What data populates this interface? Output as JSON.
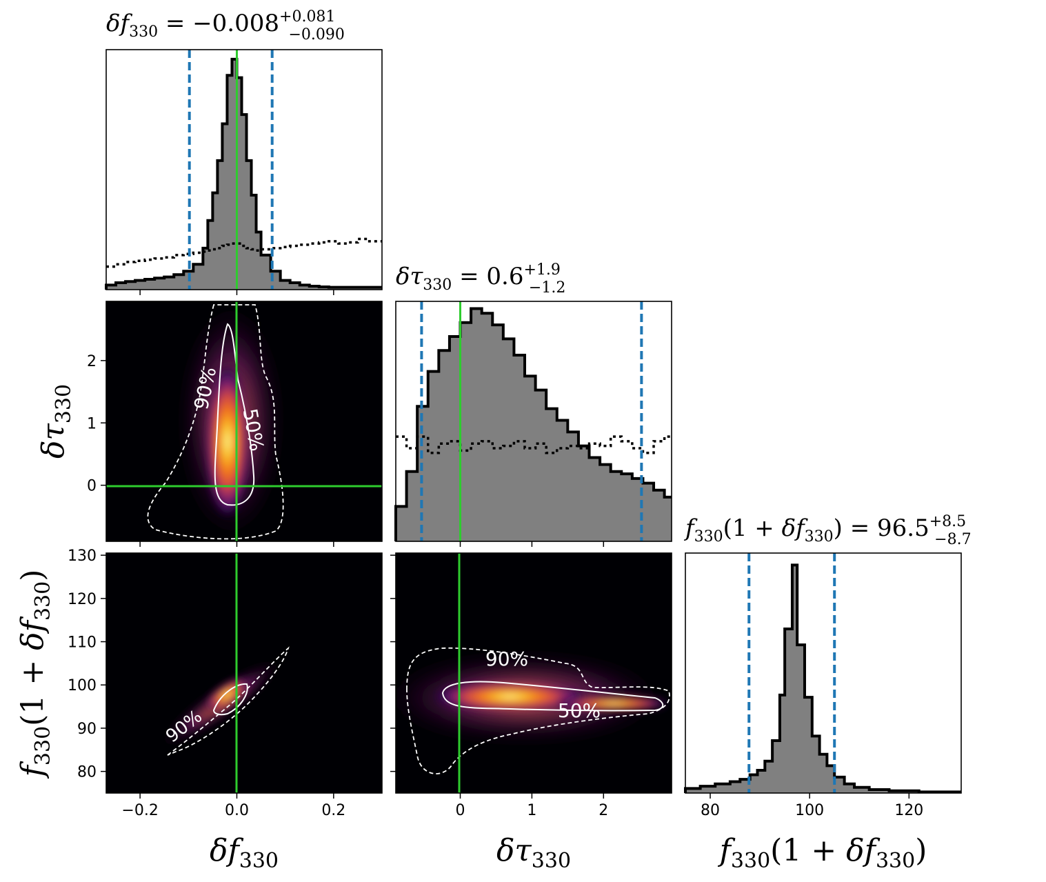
{
  "chart_data": [
    {
      "type": "histogram",
      "panel": "marginal-df",
      "title": "δf₃₃₀ = −0.008 +0.081 −0.090",
      "xlim": [
        -0.27,
        0.3
      ],
      "x_ticks": [
        -0.2,
        0.0,
        0.2
      ],
      "x_tick_labels": [
        "−0.2",
        "0.0",
        "0.2"
      ],
      "truth": 0.0,
      "credible_interval": [
        -0.098,
        0.073
      ],
      "posterior_bins": [
        -0.27,
        -0.25,
        -0.23,
        -0.21,
        -0.19,
        -0.17,
        -0.15,
        -0.13,
        -0.11,
        -0.09,
        -0.07,
        -0.06,
        -0.05,
        -0.04,
        -0.03,
        -0.02,
        -0.01,
        0.0,
        0.01,
        0.02,
        0.03,
        0.04,
        0.05,
        0.07,
        0.09,
        0.11,
        0.13,
        0.15,
        0.17,
        0.19,
        0.21,
        0.23,
        0.25,
        0.27,
        0.3
      ],
      "posterior_density": [
        0.02,
        0.03,
        0.035,
        0.04,
        0.045,
        0.05,
        0.055,
        0.065,
        0.08,
        0.11,
        0.18,
        0.3,
        0.42,
        0.56,
        0.72,
        0.93,
        1.0,
        0.92,
        0.76,
        0.56,
        0.41,
        0.25,
        0.15,
        0.08,
        0.04,
        0.03,
        0.02,
        0.015,
        0.012,
        0.01,
        0.01,
        0.01,
        0.01,
        0.01
      ],
      "prior_density": [
        0.1,
        0.11,
        0.12,
        0.125,
        0.13,
        0.135,
        0.14,
        0.15,
        0.155,
        0.16,
        0.165,
        0.17,
        0.175,
        0.18,
        0.19,
        0.195,
        0.2,
        0.2,
        0.19,
        0.18,
        0.175,
        0.17,
        0.175,
        0.18,
        0.185,
        0.19,
        0.195,
        0.2,
        0.205,
        0.21,
        0.2,
        0.205,
        0.22,
        0.21
      ]
    },
    {
      "type": "histogram",
      "panel": "marginal-dtau",
      "title": "δτ₃₃₀ = 0.6 +1.9 −1.2",
      "xlim": [
        -0.9,
        2.95
      ],
      "x_ticks": [
        0,
        1,
        2
      ],
      "truth": 0.0,
      "credible_interval": [
        -0.54,
        2.53
      ],
      "posterior_bins": [
        -0.9,
        -0.75,
        -0.6,
        -0.45,
        -0.3,
        -0.15,
        0.0,
        0.15,
        0.3,
        0.45,
        0.6,
        0.75,
        0.9,
        1.05,
        1.2,
        1.35,
        1.5,
        1.65,
        1.8,
        1.95,
        2.1,
        2.25,
        2.4,
        2.55,
        2.7,
        2.85,
        2.95
      ],
      "posterior_density": [
        0.15,
        0.3,
        0.58,
        0.73,
        0.82,
        0.88,
        0.94,
        1.0,
        0.98,
        0.93,
        0.87,
        0.8,
        0.71,
        0.65,
        0.57,
        0.52,
        0.47,
        0.41,
        0.36,
        0.33,
        0.3,
        0.29,
        0.27,
        0.25,
        0.22,
        0.19
      ],
      "prior_density": [
        0.45,
        0.4,
        0.45,
        0.38,
        0.42,
        0.43,
        0.39,
        0.42,
        0.43,
        0.4,
        0.41,
        0.43,
        0.4,
        0.42,
        0.38,
        0.4,
        0.41,
        0.4,
        0.42,
        0.41,
        0.45,
        0.43,
        0.4,
        0.38,
        0.43,
        0.45
      ]
    },
    {
      "type": "histogram",
      "panel": "marginal-f",
      "title": "f₃₃₀(1 + δf₃₃₀) = 96.5 +8.5 −8.7",
      "xlim": [
        75,
        130.5
      ],
      "x_ticks": [
        80,
        100,
        120
      ],
      "credible_interval": [
        87.8,
        105.0
      ],
      "posterior_bins": [
        75,
        78,
        81,
        84,
        86,
        88,
        89.5,
        91,
        92.5,
        94,
        95,
        96.5,
        97.5,
        99,
        100.5,
        102,
        103.5,
        105,
        107,
        109,
        112,
        116,
        122,
        130.5
      ],
      "posterior_density": [
        0.02,
        0.03,
        0.04,
        0.05,
        0.06,
        0.08,
        0.1,
        0.14,
        0.23,
        0.43,
        0.72,
        1.0,
        0.65,
        0.42,
        0.25,
        0.17,
        0.12,
        0.07,
        0.04,
        0.025,
        0.015,
        0.01,
        0.005
      ]
    },
    {
      "type": "heatmap",
      "panel": "joint-df-dtau",
      "xlim": [
        -0.27,
        0.3
      ],
      "ylim": [
        -0.9,
        2.95
      ],
      "y_ticks": [
        0,
        1,
        2
      ],
      "contour_labels": [
        "90%",
        "50%"
      ],
      "truth": [
        0.0,
        0.0
      ]
    },
    {
      "type": "heatmap",
      "panel": "joint-df-f",
      "xlim": [
        -0.27,
        0.3
      ],
      "ylim": [
        75,
        130.5
      ],
      "y_ticks": [
        80,
        90,
        100,
        110,
        120,
        130
      ],
      "contour_labels": [
        "90%"
      ],
      "truth_x": 0.0
    },
    {
      "type": "heatmap",
      "panel": "joint-dtau-f",
      "xlim": [
        -0.9,
        2.95
      ],
      "ylim": [
        75,
        130.5
      ],
      "contour_labels": [
        "90%",
        "50%"
      ],
      "truth_x": 0.0
    }
  ],
  "labels": {
    "x1": "δf₃₃₀",
    "x2": "δτ₃₃₀",
    "x3": "f₃₃₀(1 + δf₃₃₀)",
    "y2": "δτ₃₃₀",
    "y3": "f₃₃₀(1 + δf₃₃₀)"
  },
  "colors": {
    "posterior_fill": "#808080",
    "credible_interval": "#1f77b4",
    "truth": "#2ecc2e",
    "contour": "#ffffff",
    "background": "#000004"
  }
}
